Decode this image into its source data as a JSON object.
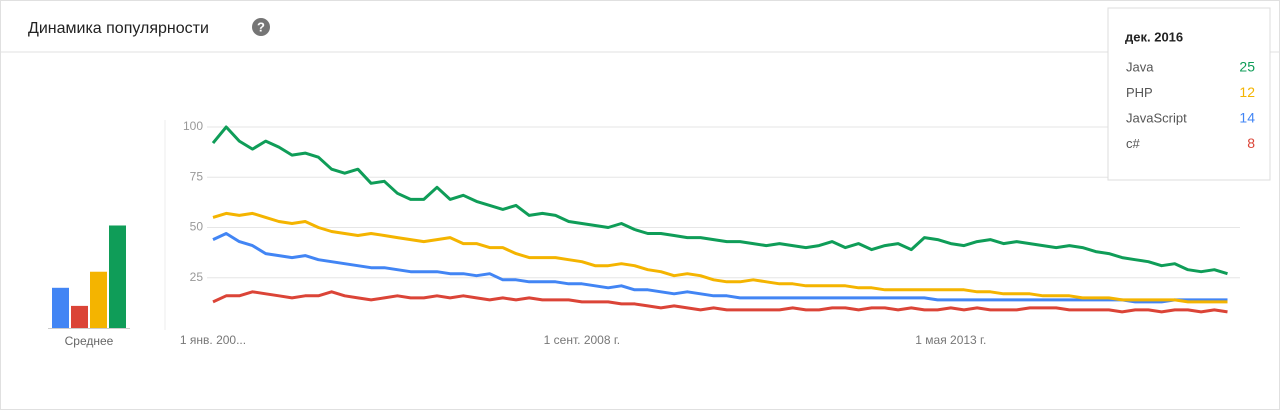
{
  "chart_data": {
    "type": "line",
    "title": "Динамика популярности",
    "help_icon": "?",
    "categories": [
      "1 янв. 200...",
      null,
      null,
      null,
      null,
      null,
      null,
      null,
      null,
      null,
      null,
      null,
      null,
      null,
      null,
      null,
      null,
      null,
      null,
      null,
      null,
      null,
      null,
      null,
      null,
      null,
      null,
      null,
      "1 сент. 2008 г.",
      null,
      null,
      null,
      null,
      null,
      null,
      null,
      null,
      null,
      null,
      null,
      null,
      null,
      null,
      null,
      null,
      null,
      null,
      null,
      null,
      null,
      null,
      null,
      null,
      null,
      null,
      null,
      "1 мая 2013 г.",
      null,
      null,
      null,
      null,
      null,
      null,
      null,
      null,
      null,
      null,
      null,
      null,
      null,
      null,
      null,
      null,
      null,
      null,
      null,
      null,
      null
    ],
    "ylim": [
      0,
      100
    ],
    "yticks": [
      25,
      50,
      75,
      100
    ],
    "grid": true,
    "average_label": "Среднее",
    "series": [
      {
        "name": "Java",
        "color": "#0f9d58",
        "average": 51,
        "values": [
          92,
          100,
          93,
          89,
          93,
          90,
          86,
          87,
          85,
          79,
          77,
          79,
          72,
          73,
          67,
          64,
          64,
          70,
          64,
          66,
          63,
          61,
          59,
          61,
          56,
          57,
          56,
          53,
          52,
          51,
          50,
          52,
          49,
          47,
          47,
          46,
          45,
          45,
          44,
          43,
          43,
          42,
          41,
          42,
          41,
          40,
          41,
          43,
          40,
          42,
          39,
          41,
          42,
          39,
          45,
          44,
          42,
          41,
          43,
          44,
          42,
          43,
          42,
          41,
          40,
          41,
          40,
          38,
          37,
          35,
          34,
          33,
          31,
          32,
          29,
          28,
          29,
          27
        ]
      },
      {
        "name": "PHP",
        "color": "#f4b400",
        "average": 28,
        "values": [
          55,
          57,
          56,
          57,
          55,
          53,
          52,
          53,
          50,
          48,
          47,
          46,
          47,
          46,
          45,
          44,
          43,
          44,
          45,
          42,
          42,
          40,
          40,
          37,
          35,
          35,
          35,
          34,
          33,
          31,
          31,
          32,
          31,
          29,
          28,
          26,
          27,
          26,
          24,
          23,
          23,
          24,
          23,
          22,
          22,
          21,
          21,
          21,
          21,
          20,
          20,
          19,
          19,
          19,
          19,
          19,
          19,
          19,
          18,
          18,
          17,
          17,
          17,
          16,
          16,
          16,
          15,
          15,
          15,
          14,
          14,
          14,
          14,
          14,
          13,
          13,
          13,
          13
        ]
      },
      {
        "name": "JavaScript",
        "color": "#4285f4",
        "average": 20,
        "values": [
          44,
          47,
          43,
          41,
          37,
          36,
          35,
          36,
          34,
          33,
          32,
          31,
          30,
          30,
          29,
          28,
          28,
          28,
          27,
          27,
          26,
          27,
          24,
          24,
          23,
          23,
          23,
          22,
          22,
          21,
          20,
          21,
          19,
          19,
          18,
          17,
          18,
          17,
          16,
          16,
          15,
          15,
          15,
          15,
          15,
          15,
          15,
          15,
          15,
          15,
          15,
          15,
          15,
          15,
          15,
          14,
          14,
          14,
          14,
          14,
          14,
          14,
          14,
          14,
          14,
          14,
          14,
          14,
          14,
          14,
          13,
          13,
          13,
          14,
          14,
          14,
          14,
          14
        ]
      },
      {
        "name": "c#",
        "color": "#db4437",
        "average": 11,
        "values": [
          13,
          16,
          16,
          18,
          17,
          16,
          15,
          16,
          16,
          18,
          16,
          15,
          14,
          15,
          16,
          15,
          15,
          16,
          15,
          16,
          15,
          14,
          15,
          14,
          15,
          14,
          14,
          14,
          13,
          13,
          13,
          12,
          12,
          11,
          10,
          11,
          10,
          9,
          10,
          9,
          9,
          9,
          9,
          9,
          10,
          9,
          9,
          10,
          10,
          9,
          10,
          10,
          9,
          10,
          9,
          9,
          10,
          9,
          10,
          9,
          9,
          9,
          10,
          10,
          10,
          9,
          9,
          9,
          9,
          8,
          9,
          9,
          8,
          9,
          9,
          8,
          9,
          8
        ]
      }
    ],
    "tooltip": {
      "title": "дек. 2016",
      "values": [
        25,
        12,
        14,
        8
      ]
    }
  }
}
